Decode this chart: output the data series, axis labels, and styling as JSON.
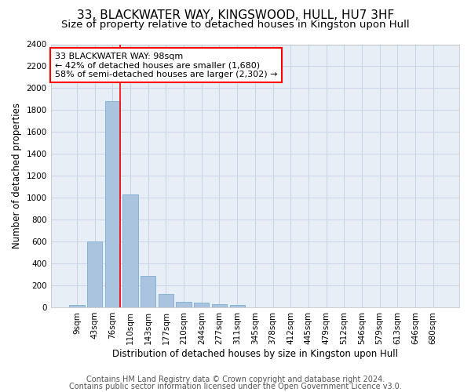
{
  "title": "33, BLACKWATER WAY, KINGSWOOD, HULL, HU7 3HF",
  "subtitle": "Size of property relative to detached houses in Kingston upon Hull",
  "xlabel": "Distribution of detached houses by size in Kingston upon Hull",
  "ylabel": "Number of detached properties",
  "footer_line1": "Contains HM Land Registry data © Crown copyright and database right 2024.",
  "footer_line2": "Contains public sector information licensed under the Open Government Licence v3.0.",
  "bar_categories": [
    "9sqm",
    "43sqm",
    "76sqm",
    "110sqm",
    "143sqm",
    "177sqm",
    "210sqm",
    "244sqm",
    "277sqm",
    "311sqm",
    "345sqm",
    "378sqm",
    "412sqm",
    "445sqm",
    "479sqm",
    "512sqm",
    "546sqm",
    "579sqm",
    "613sqm",
    "646sqm",
    "680sqm"
  ],
  "bar_values": [
    20,
    600,
    1880,
    1030,
    285,
    120,
    50,
    45,
    30,
    20,
    0,
    0,
    0,
    0,
    0,
    0,
    0,
    0,
    0,
    0,
    0
  ],
  "bar_color": "#aac4e0",
  "bar_edgecolor": "#7aafd4",
  "annotation_box_text": "33 BLACKWATER WAY: 98sqm\n← 42% of detached houses are smaller (1,680)\n58% of semi-detached houses are larger (2,302) →",
  "vline_x_index": 2,
  "vline_color": "red",
  "annotation_box_color": "red",
  "ylim": [
    0,
    2400
  ],
  "yticks": [
    0,
    200,
    400,
    600,
    800,
    1000,
    1200,
    1400,
    1600,
    1800,
    2000,
    2200,
    2400
  ],
  "grid_color": "#c8d4e4",
  "bg_color": "#e8eef6",
  "title_fontsize": 11,
  "subtitle_fontsize": 9.5,
  "axis_label_fontsize": 8.5,
  "tick_fontsize": 7.5,
  "annotation_fontsize": 8,
  "footer_fontsize": 7
}
